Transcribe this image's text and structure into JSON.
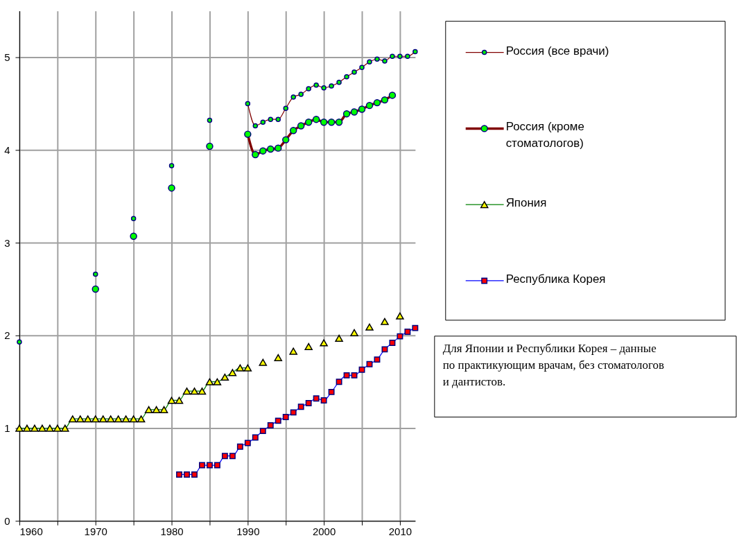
{
  "chart_data": {
    "type": "line",
    "x": [
      1960,
      1961,
      1962,
      1963,
      1964,
      1965,
      1966,
      1967,
      1968,
      1969,
      1970,
      1971,
      1972,
      1973,
      1974,
      1975,
      1976,
      1977,
      1978,
      1979,
      1980,
      1981,
      1982,
      1983,
      1984,
      1985,
      1986,
      1987,
      1988,
      1989,
      1990,
      1991,
      1992,
      1993,
      1994,
      1995,
      1996,
      1997,
      1998,
      1999,
      2000,
      2001,
      2002,
      2003,
      2004,
      2005,
      2006,
      2007,
      2008,
      2009,
      2010,
      2011,
      2012
    ],
    "series": [
      {
        "name": "Россия (все врачи)",
        "color": "#00ff00",
        "marker": "circle",
        "values": [
          1.93,
          null,
          null,
          null,
          null,
          null,
          null,
          null,
          null,
          null,
          2.66,
          null,
          null,
          null,
          null,
          3.26,
          null,
          null,
          null,
          null,
          3.83,
          null,
          null,
          null,
          null,
          4.32,
          null,
          null,
          null,
          null,
          4.5,
          4.26,
          4.3,
          4.33,
          4.33,
          4.45,
          4.57,
          4.6,
          4.66,
          4.7,
          4.67,
          4.69,
          4.73,
          4.79,
          4.84,
          4.89,
          4.95,
          4.98,
          4.96,
          5.01,
          5.01,
          5.01,
          5.06
        ]
      },
      {
        "name": "Россия (кроме стоматологов)",
        "color": "#00ff00",
        "marker": "circle",
        "values": [
          null,
          null,
          null,
          null,
          null,
          null,
          null,
          null,
          null,
          null,
          2.5,
          null,
          null,
          null,
          null,
          3.07,
          null,
          null,
          null,
          null,
          3.59,
          null,
          null,
          null,
          null,
          4.04,
          null,
          null,
          null,
          null,
          4.17,
          3.95,
          3.99,
          4.01,
          4.02,
          4.11,
          4.21,
          4.26,
          4.3,
          4.33,
          4.3,
          4.3,
          4.3,
          4.39,
          4.41,
          4.44,
          4.48,
          4.51,
          4.54,
          4.59,
          null,
          null,
          null
        ]
      },
      {
        "name": "Япония",
        "color": "#ffff00",
        "marker": "triangle",
        "values": [
          1.0,
          1.0,
          1.0,
          1.0,
          1.0,
          1.0,
          1.0,
          1.1,
          1.1,
          1.1,
          1.1,
          1.1,
          1.1,
          1.1,
          1.1,
          1.1,
          1.1,
          1.2,
          1.2,
          1.2,
          1.3,
          1.3,
          1.4,
          1.4,
          1.4,
          1.5,
          1.5,
          1.55,
          1.6,
          1.65,
          1.65,
          null,
          1.71,
          null,
          1.76,
          null,
          1.83,
          null,
          1.88,
          null,
          1.92,
          null,
          1.97,
          null,
          2.03,
          null,
          2.09,
          null,
          2.15,
          null,
          2.21,
          null,
          null
        ]
      },
      {
        "name": "Республика Корея",
        "color": "#ff0000",
        "marker": "square",
        "values": [
          null,
          null,
          null,
          null,
          null,
          null,
          null,
          null,
          null,
          null,
          null,
          null,
          null,
          null,
          null,
          null,
          null,
          null,
          null,
          null,
          null,
          0.5,
          0.5,
          0.5,
          0.6,
          0.6,
          0.6,
          0.7,
          0.7,
          0.8,
          0.84,
          0.9,
          0.97,
          1.03,
          1.08,
          1.12,
          1.17,
          1.23,
          1.27,
          1.32,
          1.3,
          1.39,
          1.5,
          1.57,
          1.57,
          1.63,
          1.69,
          1.74,
          1.85,
          1.92,
          1.99,
          2.04,
          2.08
        ]
      }
    ],
    "xlim": [
      1960,
      2012
    ],
    "xticks": [
      1960,
      {
        "value": 1965,
        "label": null
      },
      1970,
      {
        "value": 1975,
        "label": null
      },
      1980,
      {
        "value": 1985,
        "label": null
      },
      1990,
      {
        "value": 1995,
        "label": null
      },
      2000,
      {
        "value": 2005,
        "label": null
      },
      2010
    ],
    "ylim": [
      0,
      5.5
    ],
    "yticks": [
      0,
      1,
      2,
      3,
      4,
      5
    ],
    "grid": true,
    "legend": "right",
    "annotations": [
      "Для Японии и Республики Корея – данные по практикующим врачам, без стоматологов и дантистов."
    ]
  }
}
